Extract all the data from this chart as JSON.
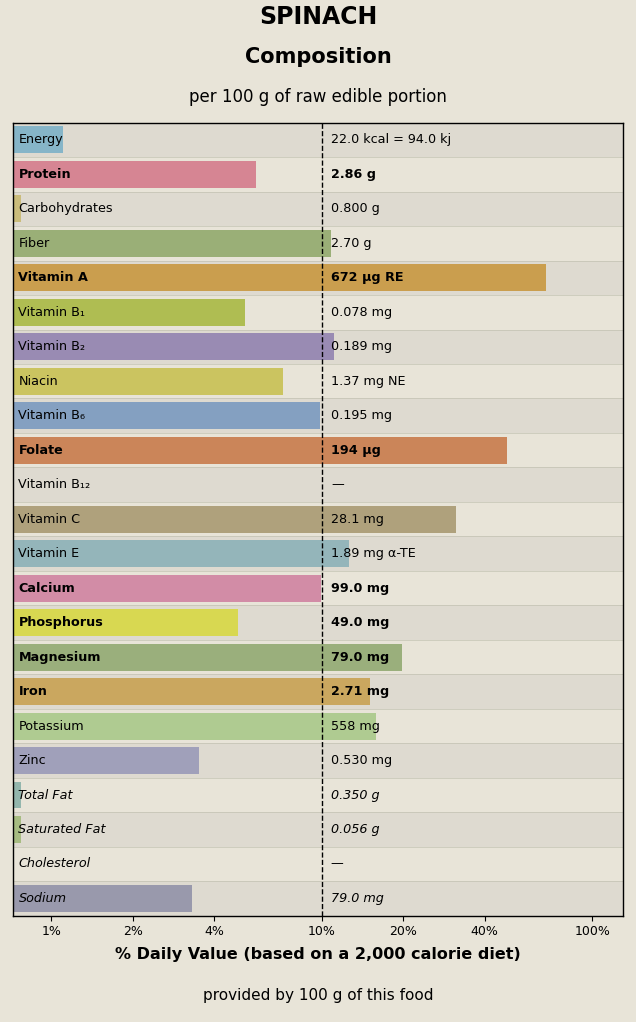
{
  "title1": "SPINACH",
  "title2": "Composition",
  "subtitle": "per 100 g of raw edible portion",
  "xlabel1": "% Daily Value (based on a 2,000 calorie diet)",
  "xlabel2": "provided by 100 g of this food",
  "bg_color": "#e8e4d8",
  "nutrients": [
    {
      "name": "Energy",
      "bold": false,
      "italic": false,
      "value_str": "22.0 kcal = 94.0 kj",
      "pct": 1.1,
      "color": "#7ab0c8",
      "has_bar": true
    },
    {
      "name": "Protein",
      "bold": true,
      "italic": false,
      "value_str": "2.86 g",
      "pct": 5.7,
      "color": "#d4788a",
      "has_bar": true
    },
    {
      "name": "Carbohydrates",
      "bold": false,
      "italic": false,
      "value_str": "0.800 g",
      "pct": 0.27,
      "color": "#c8b870",
      "has_bar": true
    },
    {
      "name": "Fiber",
      "bold": false,
      "italic": false,
      "value_str": "2.70 g",
      "pct": 10.8,
      "color": "#8fa86a",
      "has_bar": true
    },
    {
      "name": "Vitamin A",
      "bold": true,
      "italic": false,
      "value_str": "672 μg RE",
      "pct": 67.2,
      "color": "#c8963c",
      "has_bar": true
    },
    {
      "name": "Vitamin B₁",
      "bold": false,
      "italic": false,
      "value_str": "0.078 mg",
      "pct": 5.2,
      "color": "#a8b840",
      "has_bar": true
    },
    {
      "name": "Vitamin B₂",
      "bold": false,
      "italic": false,
      "value_str": "0.189 mg",
      "pct": 11.1,
      "color": "#9080b0",
      "has_bar": true
    },
    {
      "name": "Niacin",
      "bold": false,
      "italic": false,
      "value_str": "1.37 mg NE",
      "pct": 7.2,
      "color": "#c8c050",
      "has_bar": true
    },
    {
      "name": "Vitamin B₆",
      "bold": false,
      "italic": false,
      "value_str": "0.195 mg",
      "pct": 9.8,
      "color": "#7898c0",
      "has_bar": true
    },
    {
      "name": "Folate",
      "bold": true,
      "italic": false,
      "value_str": "194 μg",
      "pct": 48.5,
      "color": "#c87848",
      "has_bar": true
    },
    {
      "name": "Vitamin B₁₂",
      "bold": false,
      "italic": false,
      "value_str": "—",
      "pct": 0.0,
      "color": "#cccccc",
      "has_bar": false
    },
    {
      "name": "Vitamin C",
      "bold": false,
      "italic": false,
      "value_str": "28.1 mg",
      "pct": 31.2,
      "color": "#a89870",
      "has_bar": true
    },
    {
      "name": "Vitamin E",
      "bold": false,
      "italic": false,
      "value_str": "1.89 mg α-TE",
      "pct": 12.6,
      "color": "#8ab0b8",
      "has_bar": true
    },
    {
      "name": "Calcium",
      "bold": true,
      "italic": false,
      "value_str": "99.0 mg",
      "pct": 9.9,
      "color": "#d080a0",
      "has_bar": true
    },
    {
      "name": "Phosphorus",
      "bold": true,
      "italic": false,
      "value_str": "49.0 mg",
      "pct": 4.9,
      "color": "#d8d840",
      "has_bar": true
    },
    {
      "name": "Magnesium",
      "bold": true,
      "italic": false,
      "value_str": "79.0 mg",
      "pct": 19.8,
      "color": "#90a870",
      "has_bar": true
    },
    {
      "name": "Iron",
      "bold": true,
      "italic": false,
      "value_str": "2.71 mg",
      "pct": 15.1,
      "color": "#c8a050",
      "has_bar": true
    },
    {
      "name": "Potassium",
      "bold": false,
      "italic": false,
      "value_str": "558 mg",
      "pct": 15.9,
      "color": "#a8c888",
      "has_bar": true
    },
    {
      "name": "Zinc",
      "bold": false,
      "italic": false,
      "value_str": "0.530 mg",
      "pct": 3.5,
      "color": "#9898b8",
      "has_bar": true
    },
    {
      "name": "Total Fat",
      "bold": false,
      "italic": true,
      "value_str": "0.350 g",
      "pct": 0.54,
      "color": "#88b0a8",
      "has_bar": true
    },
    {
      "name": "Saturated Fat",
      "bold": false,
      "italic": true,
      "value_str": "0.056 g",
      "pct": 0.28,
      "color": "#a0b878",
      "has_bar": true
    },
    {
      "name": "Cholesterol",
      "bold": false,
      "italic": true,
      "value_str": "—",
      "pct": 0.0,
      "color": "#cccccc",
      "has_bar": false
    },
    {
      "name": "Sodium",
      "bold": false,
      "italic": true,
      "value_str": "79.0 mg",
      "pct": 3.3,
      "color": "#9090a8",
      "has_bar": true
    }
  ],
  "xticks": [
    1,
    2,
    4,
    10,
    20,
    40,
    100
  ],
  "xticklabels": [
    "1%",
    "2%",
    "4%",
    "10%",
    "20%",
    "40%",
    "100%"
  ],
  "xlim_left": 0.72,
  "xlim_right": 130,
  "dashed_line_x": 10
}
